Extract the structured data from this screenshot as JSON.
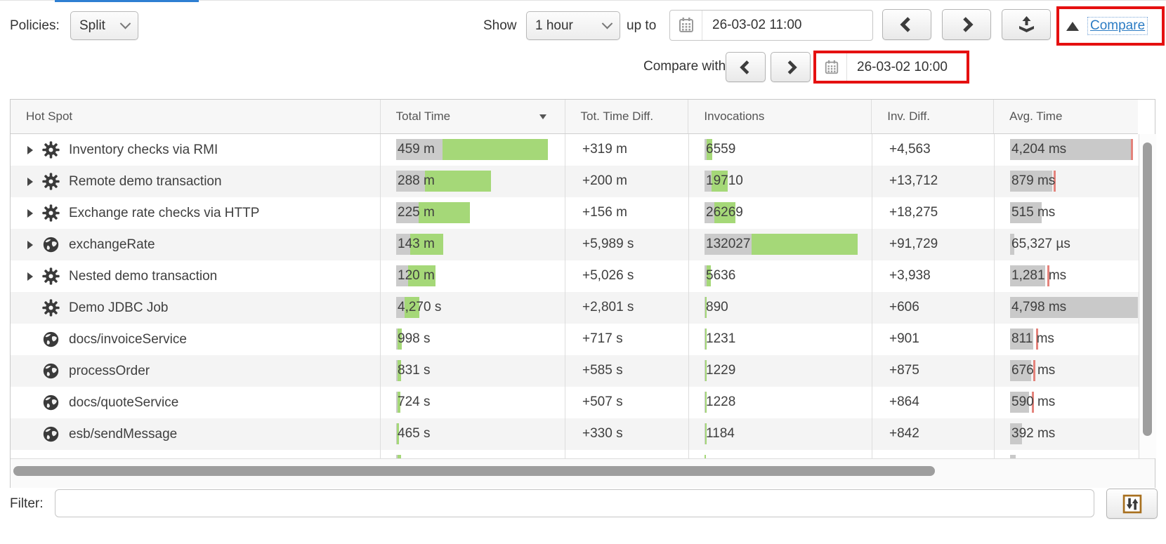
{
  "colors": {
    "accent_blue": "#2e7fd2",
    "bar_green": "#a5d878",
    "bar_gray": "#cbcbcb",
    "avg_marker_red": "#e4837c",
    "annotation_red": "#e51010",
    "link_blue": "#2c7cc4"
  },
  "toolbar": {
    "policies_label": "Policies:",
    "policies_value": "Split",
    "show_label": "Show",
    "show_value": "1 hour",
    "upto_label": "up to",
    "date_value": "26-03-02 11:00",
    "compare_toggle": "Compare",
    "compare_with_label": "Compare with:",
    "compare_date_value": "26-03-02 10:00"
  },
  "table": {
    "columns": [
      "Hot Spot",
      "Total Time",
      "Tot. Time Diff.",
      "Invocations",
      "Inv. Diff.",
      "Avg. Time"
    ],
    "sorted_by": "Total Time",
    "rows": [
      {
        "name": "Inventory checks via RMI",
        "icon": "gear",
        "expandable": true,
        "total_time": "459 m",
        "tt_gray": 66,
        "tt_green": 150,
        "time_diff": "+319 m",
        "invocations": "6559",
        "inv_gray": 3,
        "inv_green": 8,
        "inv_diff": "+4,563",
        "avg_time": "4,204 ms",
        "avg_bar": 175,
        "avg_red": 172
      },
      {
        "name": "Remote demo transaction",
        "icon": "gear",
        "expandable": true,
        "total_time": "288 m",
        "tt_gray": 41,
        "tt_green": 94,
        "time_diff": "+200 m",
        "invocations": "19710",
        "inv_gray": 10,
        "inv_green": 23,
        "inv_diff": "+13,712",
        "avg_time": "879 ms",
        "avg_bar": 60,
        "avg_red": 62
      },
      {
        "name": "Exchange rate checks via HTTP",
        "icon": "gear",
        "expandable": true,
        "total_time": "225 m",
        "tt_gray": 32,
        "tt_green": 73,
        "time_diff": "+156 m",
        "invocations": "26269",
        "inv_gray": 14,
        "inv_green": 30,
        "inv_diff": "+18,275",
        "avg_time": "515 ms",
        "avg_bar": 45,
        "avg_red": -1
      },
      {
        "name": "exchangeRate",
        "icon": "globe",
        "expandable": true,
        "total_time": "143 m",
        "tt_gray": 20,
        "tt_green": 47,
        "time_diff": "+5,989 s",
        "invocations": "132027",
        "inv_gray": 67,
        "inv_green": 151,
        "inv_diff": "+91,729",
        "avg_time": "65,327 µs",
        "avg_bar": 6,
        "avg_red": -1
      },
      {
        "name": "Nested demo transaction",
        "icon": "gear",
        "expandable": true,
        "total_time": "120 m",
        "tt_gray": 17,
        "tt_green": 39,
        "time_diff": "+5,026 s",
        "invocations": "5636",
        "inv_gray": 3,
        "inv_green": 6,
        "inv_diff": "+3,938",
        "avg_time": "1,281 ms",
        "avg_bar": 50,
        "avg_red": 53
      },
      {
        "name": "Demo JDBC Job",
        "icon": "gear",
        "expandable": false,
        "total_time": "4,270 s",
        "tt_gray": 12,
        "tt_green": 21,
        "time_diff": "+2,801 s",
        "invocations": "890",
        "inv_gray": 1,
        "inv_green": 2,
        "inv_diff": "+606",
        "avg_time": "4,798 ms",
        "avg_bar": 182,
        "avg_red": -1
      },
      {
        "name": "docs/invoiceService",
        "icon": "globe",
        "expandable": false,
        "total_time": "998 s",
        "tt_gray": 2,
        "tt_green": 6,
        "time_diff": "+717 s",
        "invocations": "1231",
        "inv_gray": 1,
        "inv_green": 2,
        "inv_diff": "+901",
        "avg_time": "811 ms",
        "avg_bar": 33,
        "avg_red": 37
      },
      {
        "name": "processOrder",
        "icon": "globe",
        "expandable": false,
        "total_time": "831 s",
        "tt_gray": 2,
        "tt_green": 5,
        "time_diff": "+585 s",
        "invocations": "1229",
        "inv_gray": 1,
        "inv_green": 2,
        "inv_diff": "+875",
        "avg_time": "676 ms",
        "avg_bar": 30,
        "avg_red": 33
      },
      {
        "name": "docs/quoteService",
        "icon": "globe",
        "expandable": false,
        "total_time": "724 s",
        "tt_gray": 2,
        "tt_green": 4,
        "time_diff": "+507 s",
        "invocations": "1228",
        "inv_gray": 1,
        "inv_green": 2,
        "inv_diff": "+864",
        "avg_time": "590 ms",
        "avg_bar": 27,
        "avg_red": 31
      },
      {
        "name": "esb/sendMessage",
        "icon": "globe",
        "expandable": false,
        "total_time": "465 s",
        "tt_gray": 1,
        "tt_green": 3,
        "time_diff": "+330 s",
        "invocations": "1184",
        "inv_gray": 1,
        "inv_green": 2,
        "inv_diff": "+842",
        "avg_time": "392 ms",
        "avg_bar": 17,
        "avg_red": -1
      }
    ],
    "partial_row": {
      "tt_gray": 2,
      "tt_green": 5,
      "inv_green": 2,
      "avg_gray": 8
    }
  },
  "footer": {
    "filter_label": "Filter:",
    "filter_value": ""
  }
}
